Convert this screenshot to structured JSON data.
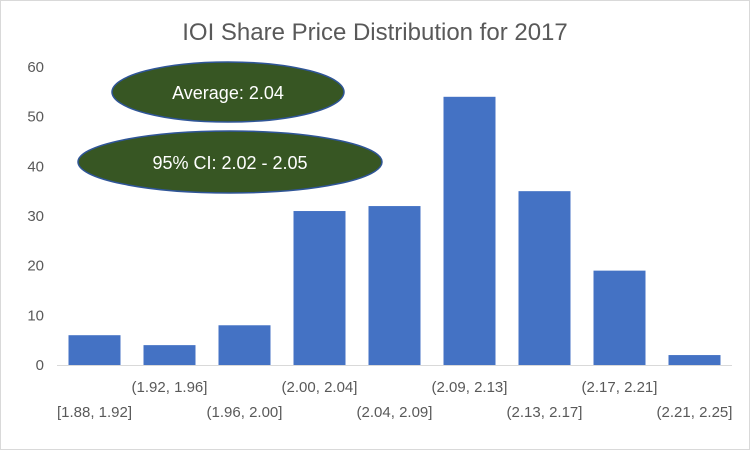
{
  "chart_data": {
    "type": "bar",
    "title": "IOI Share Price Distribution for 2017",
    "xlabel": "",
    "ylabel": "",
    "categories": [
      "[1.88, 1.92]",
      "(1.92, 1.96]",
      "(1.96, 2.00]",
      "(2.00, 2.04]",
      "(2.04, 2.09]",
      "(2.09, 2.13]",
      "(2.13, 2.17]",
      "(2.17, 2.21]",
      "(2.21, 2.25]"
    ],
    "values": [
      6,
      4,
      8,
      31,
      32,
      54,
      35,
      19,
      2
    ],
    "ylim": [
      0,
      60
    ],
    "yticks": [
      0,
      10,
      20,
      30,
      40,
      50,
      60
    ],
    "grid": false,
    "legend": "none",
    "bar_color": "#4472c4",
    "annotations": [
      {
        "text": "Average: 2.04",
        "shape": "ellipse",
        "fill": "#375623",
        "stroke": "#2f5597"
      },
      {
        "text": "95% CI: 2.02 - 2.05",
        "shape": "ellipse",
        "fill": "#375623",
        "stroke": "#2f5597"
      }
    ]
  }
}
